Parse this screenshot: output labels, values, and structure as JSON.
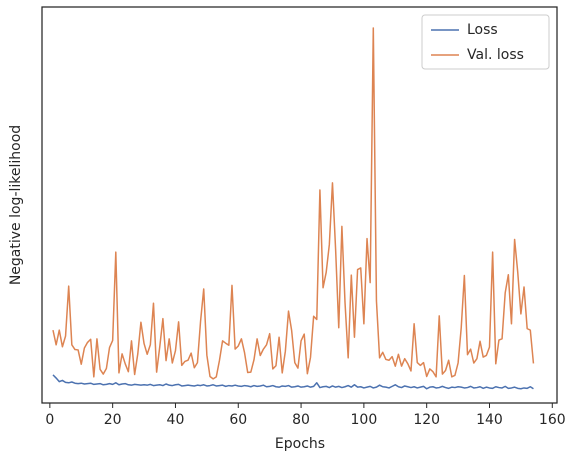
{
  "chart_data": {
    "type": "line",
    "xlabel": "Epochs",
    "ylabel": "Negative log-likelihood",
    "x": [
      1,
      2,
      3,
      4,
      5,
      6,
      7,
      8,
      9,
      10,
      11,
      12,
      13,
      14,
      15,
      16,
      17,
      18,
      19,
      20,
      21,
      22,
      23,
      24,
      25,
      26,
      27,
      28,
      29,
      30,
      31,
      32,
      33,
      34,
      35,
      36,
      37,
      38,
      39,
      40,
      41,
      42,
      43,
      44,
      45,
      46,
      47,
      48,
      49,
      50,
      51,
      52,
      53,
      54,
      55,
      56,
      57,
      58,
      59,
      60,
      61,
      62,
      63,
      64,
      65,
      66,
      67,
      68,
      69,
      70,
      71,
      72,
      73,
      74,
      75,
      76,
      77,
      78,
      79,
      80,
      81,
      82,
      83,
      84,
      85,
      86,
      87,
      88,
      89,
      90,
      91,
      92,
      93,
      94,
      95,
      96,
      97,
      98,
      99,
      100,
      101,
      102,
      103,
      104,
      105,
      106,
      107,
      108,
      109,
      110,
      111,
      112,
      113,
      114,
      115,
      116,
      117,
      118,
      119,
      120,
      121,
      122,
      123,
      124,
      125,
      126,
      127,
      128,
      129,
      130,
      131,
      132,
      133,
      134,
      135,
      136,
      137,
      138,
      139,
      140,
      141,
      142,
      143,
      144,
      145,
      146,
      147,
      148,
      149,
      150,
      151,
      152,
      153,
      154
    ],
    "series": [
      {
        "name": "Loss",
        "color": "#4c72b0",
        "values": [
          7.1,
          6.3,
          5.4,
          5.7,
          5.2,
          5.1,
          5.3,
          5,
          4.9,
          5,
          4.8,
          4.9,
          5,
          4.7,
          4.8,
          4.9,
          4.6,
          4.7,
          4.9,
          4.7,
          5.1,
          4.6,
          4.8,
          4.9,
          4.6,
          4.5,
          4.7,
          4.6,
          4.5,
          4.6,
          4.5,
          4.7,
          4.4,
          4.5,
          4.6,
          4.4,
          4.8,
          4.5,
          4.4,
          4.6,
          4.7,
          4.3,
          4.4,
          4.5,
          4.4,
          4.3,
          4.5,
          4.4,
          4.6,
          4.3,
          4.4,
          4.6,
          4.3,
          4.4,
          4.5,
          4.2,
          4.4,
          4.3,
          4.5,
          4.3,
          4.2,
          4.4,
          4.3,
          4.1,
          4.4,
          4.2,
          4.3,
          4.5,
          4.1,
          4.2,
          4.4,
          4.1,
          4,
          4.3,
          4.2,
          4.4,
          4,
          4.1,
          4.3,
          4,
          4.1,
          4.3,
          4,
          4.2,
          5.1,
          3.9,
          4.1,
          4.2,
          3.9,
          4.3,
          4,
          4.2,
          3.9,
          4.1,
          4.4,
          4,
          4.6,
          4,
          4.1,
          3.8,
          4,
          4.2,
          3.8,
          4,
          4.5,
          4.1,
          4,
          3.8,
          4.2,
          4.6,
          4.1,
          3.9,
          4.3,
          4.1,
          3.9,
          4.1,
          3.8,
          4,
          4.2,
          3.6,
          4,
          4.1,
          3.8,
          3.9,
          4.2,
          3.9,
          3.7,
          4,
          3.9,
          4.1,
          4,
          3.8,
          3.9,
          4.2,
          3.8,
          3.9,
          4.1,
          3.7,
          4,
          3.8,
          3.7,
          4.1,
          3.9,
          3.8,
          4.2,
          3.7,
          3.8,
          4,
          3.7,
          3.6,
          3.8,
          3.7,
          4.1,
          3.6
        ]
      },
      {
        "name": "Val. loss",
        "color": "#dd8452",
        "values": [
          18.4,
          14.7,
          18.4,
          14.2,
          16.9,
          29.5,
          14.7,
          13.5,
          13.4,
          9.8,
          13.9,
          15.3,
          16.1,
          6.6,
          16.2,
          8.5,
          7.3,
          8.7,
          14,
          15.8,
          38.1,
          7.6,
          12.4,
          9.9,
          7.9,
          15.7,
          7.2,
          12.4,
          20.4,
          15,
          12.3,
          14.7,
          25.2,
          7.8,
          14.2,
          21.3,
          10.7,
          16.2,
          10.1,
          13.2,
          20.5,
          9.5,
          10.5,
          10.8,
          12.6,
          8.9,
          10.2,
          20.7,
          28.8,
          12.1,
          6.7,
          6.1,
          6.6,
          10.7,
          15.7,
          15.1,
          14.6,
          29.7,
          13.6,
          14.4,
          16.2,
          12.7,
          7.7,
          7.8,
          10.9,
          16.2,
          12,
          13.6,
          14.7,
          17.5,
          8.6,
          9.4,
          16.6,
          7.6,
          13.1,
          23.2,
          18.3,
          10.2,
          8.8,
          15.7,
          17.4,
          7.4,
          11.5,
          21.9,
          21.1,
          53.8,
          29.1,
          33,
          40,
          55.6,
          38.8,
          19,
          44.6,
          25.3,
          11.4,
          32.3,
          16.6,
          33.7,
          34.1,
          20,
          41.5,
          30.4,
          94.7,
          25.8,
          11.4,
          12.8,
          11,
          10.8,
          11.7,
          9.3,
          12.3,
          9.3,
          11.2,
          9.9,
          8.1,
          20,
          10.2,
          9.5,
          10.2,
          6.7,
          8.6,
          7.9,
          6.6,
          22,
          7.3,
          8.2,
          10.8,
          6.6,
          7,
          10.1,
          19,
          32.2,
          12.2,
          13.6,
          10.1,
          11.2,
          15.6,
          11.6,
          12,
          14.1,
          38.1,
          9.9,
          15.9,
          16.2,
          27.8,
          32.4,
          20,
          41.3,
          33,
          22.5,
          29.3,
          18.8,
          18.4,
          10
        ]
      }
    ],
    "xlim": [
      -2.5,
      161.5
    ],
    "ylim": [
      0,
      100
    ],
    "xticks": [
      0,
      20,
      40,
      60,
      80,
      100,
      120,
      140,
      160
    ],
    "grid": false,
    "legend": "upper right"
  }
}
